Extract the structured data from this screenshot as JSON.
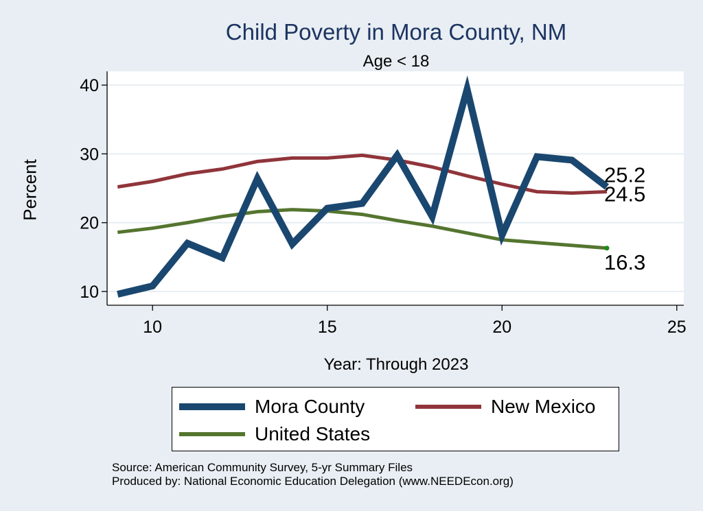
{
  "chart_data": {
    "type": "line",
    "title": "Child Poverty in Mora County, NM",
    "subtitle": "Age < 18",
    "xlabel": "Year: Through 2023",
    "ylabel": "Percent",
    "xlim": [
      8.7,
      25.2
    ],
    "ylim": [
      8,
      42
    ],
    "xticks": [
      10,
      15,
      20,
      25
    ],
    "yticks": [
      10,
      20,
      30,
      40
    ],
    "grid": true,
    "series": [
      {
        "name": "Mora County",
        "color": "#1a476f",
        "x": [
          9,
          10,
          11,
          12,
          13,
          14,
          15,
          16,
          17,
          18,
          19,
          20,
          21,
          22,
          23
        ],
        "y": [
          9.6,
          10.8,
          17.0,
          14.9,
          26.4,
          16.9,
          22.1,
          22.8,
          29.8,
          20.9,
          39.4,
          18.2,
          29.6,
          29.1,
          25.2
        ],
        "end_label": "25.2"
      },
      {
        "name": "New Mexico",
        "color": "#90353b",
        "x": [
          9,
          10,
          11,
          12,
          13,
          14,
          15,
          16,
          17,
          18,
          19,
          20,
          21,
          22,
          23
        ],
        "y": [
          25.2,
          26.0,
          27.1,
          27.8,
          28.9,
          29.4,
          29.4,
          29.8,
          29.1,
          28.1,
          26.8,
          25.6,
          24.5,
          24.3,
          24.5
        ],
        "end_label": "24.5"
      },
      {
        "name": "United States",
        "color": "#55752f",
        "x": [
          9,
          10,
          11,
          12,
          13,
          14,
          15,
          16,
          17,
          18,
          19,
          20,
          21,
          22,
          23
        ],
        "y": [
          18.6,
          19.2,
          20.0,
          20.9,
          21.6,
          21.9,
          21.7,
          21.2,
          20.3,
          19.5,
          18.5,
          17.5,
          17.1,
          16.7,
          16.3
        ],
        "end_label": "16.3"
      }
    ]
  },
  "notes": {
    "source": "Source: American Community Survey, 5-yr Summary Files",
    "produced": "Produced by: National Economic Education Delegation (www.NEEDEcon.org)"
  }
}
